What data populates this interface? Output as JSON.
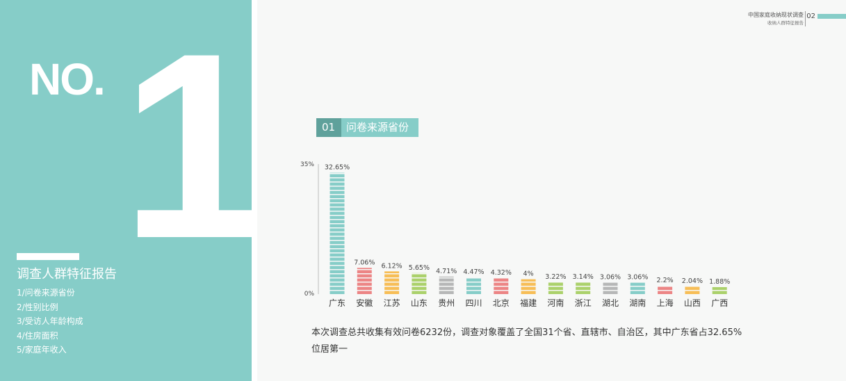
{
  "left": {
    "no_text": "NO.",
    "big_number": "1",
    "section_title": "调查人群特征报告",
    "toc": [
      "1/问卷来源省份",
      "2/性别比例",
      "3/受访人年龄构成",
      "4/住房面积",
      "5/家庭年收入"
    ]
  },
  "header": {
    "title": "中国家庭收纳现状调查",
    "subtitle": "收纳人群特征报告",
    "page_number": "02"
  },
  "chart_tag": {
    "number": "01",
    "label": "问卷来源省份"
  },
  "colors": {
    "teal": "#86cdc8",
    "red": "#ec8585",
    "orange": "#f7be57",
    "green": "#abd16b",
    "gray": "#b6b7b7"
  },
  "chart_data": {
    "type": "bar",
    "categories": [
      "广东",
      "安徽",
      "江苏",
      "山东",
      "贵州",
      "四川",
      "北京",
      "福建",
      "河南",
      "浙江",
      "湖北",
      "湖南",
      "上海",
      "山西",
      "广西"
    ],
    "values": [
      32.65,
      7.06,
      6.12,
      5.65,
      4.71,
      4.47,
      4.32,
      4,
      3.22,
      3.14,
      3.06,
      3.06,
      2.2,
      2.04,
      1.88
    ],
    "value_labels": [
      "32.65%",
      "7.06%",
      "6.12%",
      "5.65%",
      "4.71%",
      "4.47%",
      "4.32%",
      "4%",
      "3.22%",
      "3.14%",
      "3.06%",
      "3.06%",
      "2.2%",
      "2.04%",
      "1.88%"
    ],
    "bar_colors": [
      "#86cdc8",
      "#ec8585",
      "#f7be57",
      "#abd16b",
      "#b6b7b7",
      "#86cdc8",
      "#ec8585",
      "#f7be57",
      "#abd16b",
      "#abd16b",
      "#b6b7b7",
      "#86cdc8",
      "#ec8585",
      "#f7be57",
      "#abd16b"
    ],
    "y_tick_labels": [
      "35%",
      "0%"
    ],
    "ylim": [
      0,
      35
    ]
  },
  "footer": {
    "text": "本次调查总共收集有效问卷6232份，调查对象覆盖了全国31个省、直辖市、自治区，其中广东省占32.65%位居第一"
  }
}
